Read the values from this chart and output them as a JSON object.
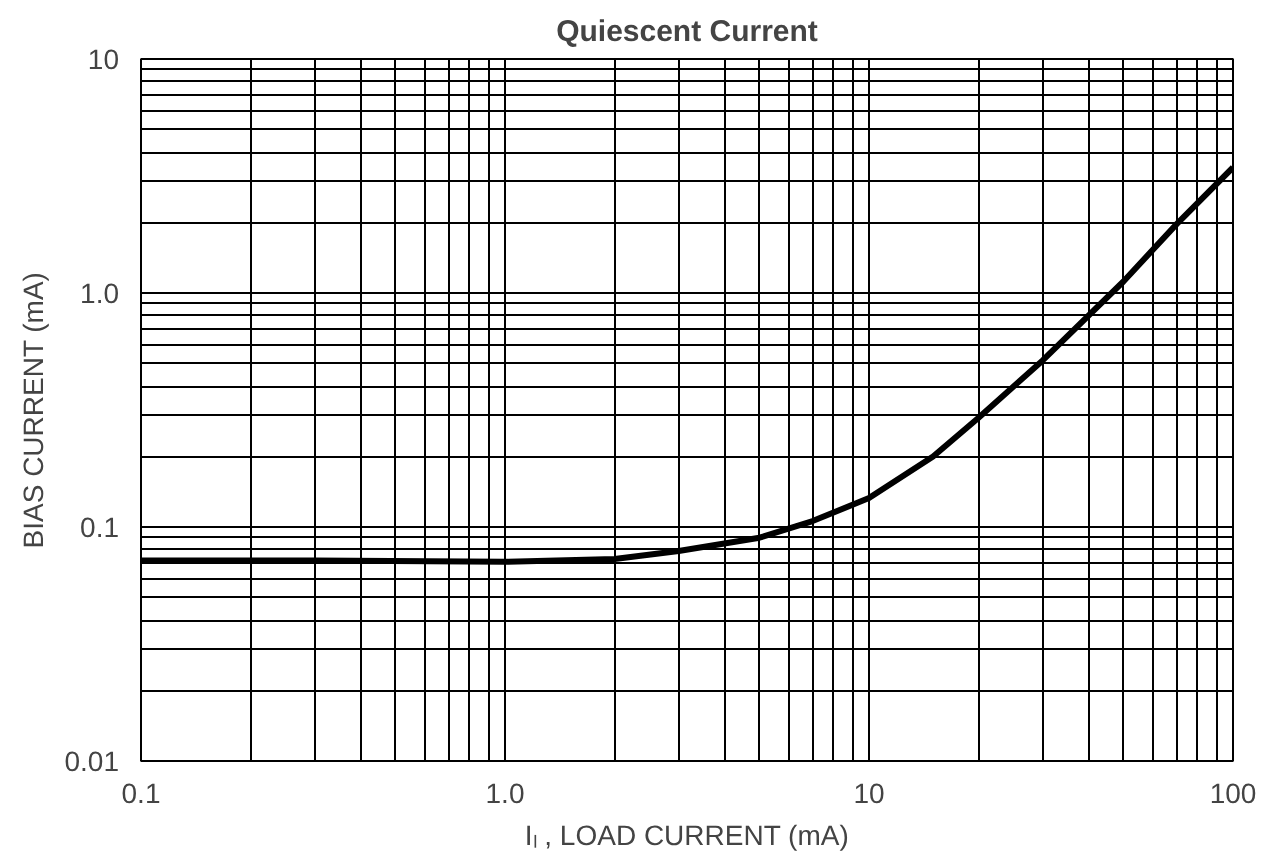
{
  "chart_data": {
    "type": "line",
    "title": "Quiescent Current",
    "xlabel": "Iₗ , LOAD CURRENT (mA)",
    "ylabel": "BIAS CURRENT (mA)",
    "log": "xy",
    "x": [
      0.1,
      0.3,
      1,
      2,
      3,
      5,
      7,
      10,
      15,
      20,
      30,
      50,
      70,
      100
    ],
    "series": [
      {
        "color": "#000000",
        "values": [
          0.072,
          0.072,
          0.071,
          0.073,
          0.079,
          0.09,
          0.106,
          0.133,
          0.2,
          0.293,
          0.515,
          1.12,
          1.97,
          3.44
        ]
      }
    ],
    "xlim": [
      0.1,
      100
    ],
    "ylim": [
      0.01,
      10
    ],
    "xticks": [
      0.1,
      {
        "value": 1,
        "label": "1.0"
      },
      10,
      100
    ],
    "yticks": [
      0.01,
      0.1,
      {
        "value": 1,
        "label": "1.0"
      },
      10
    ],
    "grid": true,
    "marker": "none",
    "line_style": "solid"
  }
}
